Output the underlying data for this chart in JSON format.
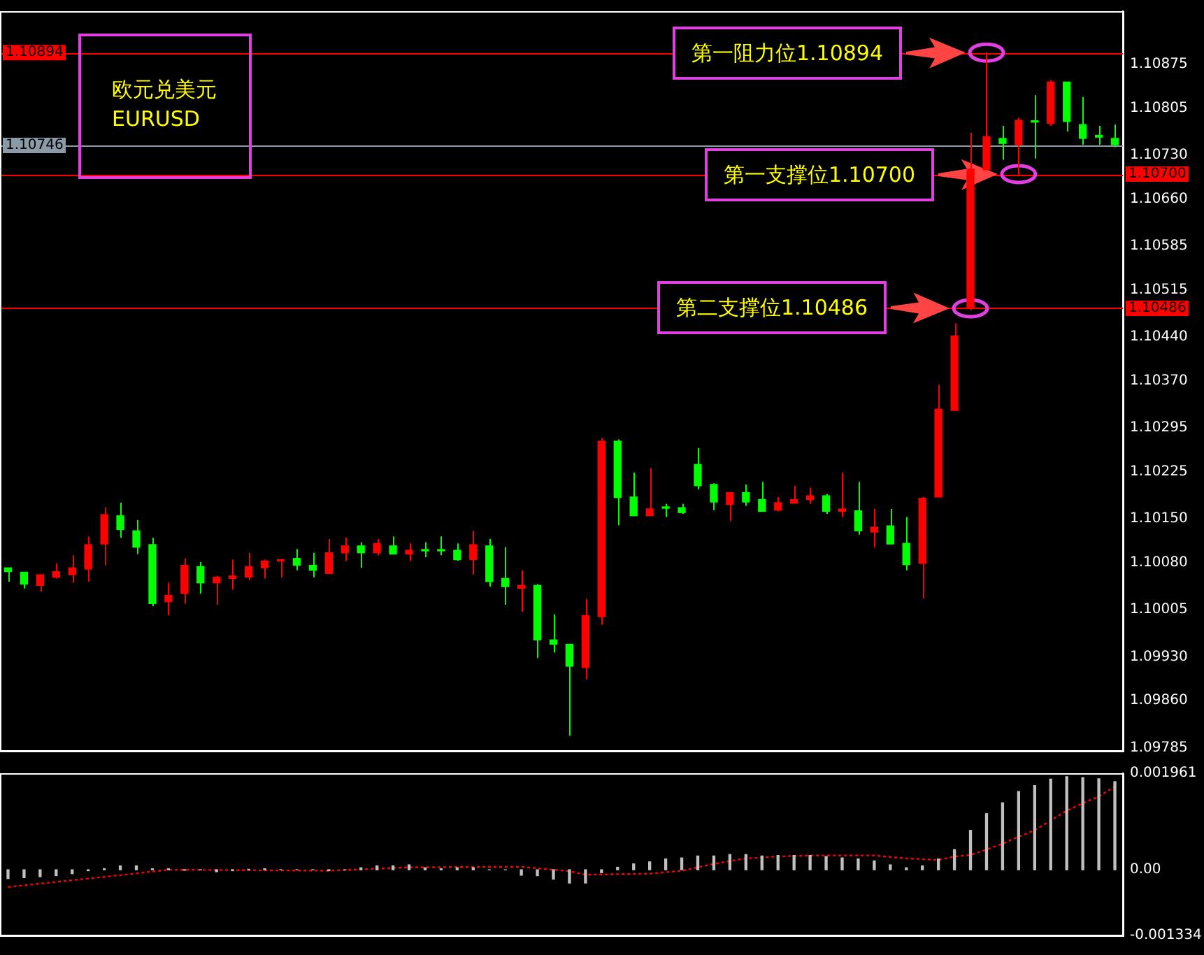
{
  "chart_data": [
    {
      "type": "candlestick",
      "title": "欧元兑美元",
      "subtitle": "EURUSD",
      "categories": [
        null,
        null,
        null,
        null,
        null,
        null,
        null,
        null,
        null,
        null,
        null,
        null,
        null,
        null,
        null,
        null,
        null,
        null,
        null,
        null,
        null,
        null,
        null,
        null,
        null,
        null,
        null,
        null,
        null,
        null,
        null,
        null,
        null,
        null,
        null,
        null,
        null,
        null,
        null,
        null,
        null,
        null,
        null,
        null,
        null,
        null,
        null,
        null,
        null,
        null,
        null,
        null,
        null,
        null,
        null,
        null,
        null,
        null,
        null,
        null,
        null,
        null,
        null,
        null,
        null,
        null,
        null,
        null,
        null,
        null
      ],
      "ohlc": [
        [
          1.10072,
          1.10072,
          1.1005,
          1.10066
        ],
        [
          1.10065,
          1.10065,
          1.10039,
          1.10046
        ],
        [
          1.10044,
          1.10061,
          1.10034,
          1.10061
        ],
        [
          1.10057,
          1.10079,
          1.10055,
          1.10066
        ],
        [
          1.10061,
          1.10092,
          1.10048,
          1.10072
        ],
        [
          1.1007,
          1.10122,
          1.1005,
          1.10109
        ],
        [
          1.1011,
          1.10168,
          1.10076,
          1.10157
        ],
        [
          1.10155,
          1.10176,
          1.1012,
          1.10133
        ],
        [
          1.10131,
          1.10148,
          1.10094,
          1.10105
        ],
        [
          1.10109,
          1.1012,
          1.10011,
          1.10015
        ],
        [
          1.10018,
          1.10048,
          1.09996,
          1.10028
        ],
        [
          1.10031,
          1.10087,
          1.10015,
          1.10076
        ],
        [
          1.10074,
          1.10081,
          1.10031,
          1.10048
        ],
        [
          1.10048,
          1.10059,
          1.10013,
          1.10057
        ],
        [
          1.10055,
          1.10085,
          1.10037,
          1.10059
        ],
        [
          1.10057,
          1.10096,
          1.10052,
          1.10074
        ],
        [
          1.10072,
          1.10085,
          1.10055,
          1.10083
        ],
        [
          1.10083,
          1.10086,
          1.10057,
          1.10085
        ],
        [
          1.10087,
          1.10102,
          1.10068,
          1.10076
        ],
        [
          1.10076,
          1.10096,
          1.10057,
          1.10068
        ],
        [
          1.10063,
          1.10118,
          1.10063,
          1.10096
        ],
        [
          1.10096,
          1.1012,
          1.10083,
          1.10107
        ],
        [
          1.10107,
          1.10113,
          1.10072,
          1.10096
        ],
        [
          1.10096,
          1.10118,
          1.10092,
          1.10111
        ],
        [
          1.10107,
          1.10122,
          1.10094,
          1.10094
        ],
        [
          1.10094,
          1.10111,
          1.10083,
          1.101
        ],
        [
          1.101,
          1.10113,
          1.10089,
          1.10099
        ],
        [
          1.101,
          1.10122,
          1.10092,
          1.10099
        ],
        [
          1.101,
          1.10111,
          1.10083,
          1.10085
        ],
        [
          1.10085,
          1.10131,
          1.10061,
          1.10109
        ],
        [
          1.10107,
          1.10118,
          1.10042,
          1.1005
        ],
        [
          1.10055,
          1.10105,
          1.10013,
          1.10042
        ],
        [
          1.10039,
          1.10068,
          1.10002,
          1.10044
        ],
        [
          1.10044,
          1.10046,
          1.09928,
          1.09957
        ],
        [
          1.09957,
          1.09998,
          1.09937,
          1.0995
        ],
        [
          1.0995,
          1.0995,
          1.09804,
          1.09915
        ],
        [
          1.09913,
          1.10022,
          1.09894,
          1.09996
        ],
        [
          1.09994,
          1.10279,
          1.09981,
          1.10274
        ],
        [
          1.10274,
          1.10277,
          1.1014,
          1.10184
        ],
        [
          1.10185,
          1.10224,
          1.10155,
          1.10155
        ],
        [
          1.10155,
          1.10231,
          1.10155,
          1.10166
        ],
        [
          1.10168,
          1.10174,
          1.10153,
          1.10167
        ],
        [
          1.10168,
          1.10174,
          1.10158,
          1.1016
        ],
        [
          1.10237,
          1.10263,
          1.10197,
          1.10203
        ],
        [
          1.10205,
          1.10207,
          1.10164,
          1.10177
        ],
        [
          1.10173,
          1.10192,
          1.10147,
          1.10192
        ],
        [
          1.10192,
          1.10205,
          1.10171,
          1.10177
        ],
        [
          1.10181,
          1.10209,
          1.10162,
          1.10162
        ],
        [
          1.10164,
          1.10185,
          1.10162,
          1.10176
        ],
        [
          1.10175,
          1.10203,
          1.10175,
          1.10181
        ],
        [
          1.10181,
          1.102,
          1.10174,
          1.10187
        ],
        [
          1.10187,
          1.1019,
          1.10158,
          1.10162
        ],
        [
          1.10162,
          1.10224,
          1.10153,
          1.10166
        ],
        [
          1.10163,
          1.10209,
          1.10125,
          1.10131
        ],
        [
          1.10129,
          1.10166,
          1.10105,
          1.10137
        ],
        [
          1.10139,
          1.10166,
          1.1011,
          1.1011
        ],
        [
          1.10111,
          1.10153,
          1.10068,
          1.10077
        ],
        [
          1.10079,
          1.10185,
          1.10023,
          1.10183
        ],
        [
          1.10185,
          1.10364,
          1.10185,
          1.10325
        ],
        [
          1.10323,
          1.10462,
          1.10323,
          1.10442
        ],
        [
          1.10487,
          1.10766,
          1.10483,
          1.10708
        ],
        [
          1.10707,
          1.10894,
          1.10707,
          1.1076
        ],
        [
          1.10757,
          1.10777,
          1.10723,
          1.10749
        ],
        [
          1.10747,
          1.1079,
          1.10699,
          1.10786
        ],
        [
          1.10784,
          1.10826,
          1.10725,
          1.10783
        ],
        [
          1.10781,
          1.1085,
          1.10777,
          1.10847
        ],
        [
          1.10847,
          1.10847,
          1.10768,
          1.10784
        ],
        [
          1.10779,
          1.10823,
          1.10747,
          1.10757
        ],
        [
          1.10762,
          1.10777,
          1.10747,
          1.10759
        ],
        [
          1.10757,
          1.10779,
          1.10743,
          1.10747
        ]
      ],
      "colors": [
        "#00ff00",
        "#00ff00",
        "#ff0000",
        "#ff0000",
        "#ff0000",
        "#ff0000",
        "#ff0000",
        "#00ff00",
        "#00ff00",
        "#00ff00",
        "#ff0000",
        "#ff0000",
        "#00ff00",
        "#ff0000",
        "#ff0000",
        "#ff0000",
        "#ff0000",
        "#ff0000",
        "#00ff00",
        "#00ff00",
        "#ff0000",
        "#ff0000",
        "#00ff00",
        "#ff0000",
        "#00ff00",
        "#ff0000",
        "#00ff00",
        "#00ff00",
        "#00ff00",
        "#ff0000",
        "#00ff00",
        "#00ff00",
        "#ff0000",
        "#00ff00",
        "#00ff00",
        "#00ff00",
        "#ff0000",
        "#ff0000",
        "#00ff00",
        "#00ff00",
        "#ff0000",
        "#00ff00",
        "#00ff00",
        "#00ff00",
        "#00ff00",
        "#ff0000",
        "#00ff00",
        "#00ff00",
        "#ff0000",
        "#ff0000",
        "#ff0000",
        "#00ff00",
        "#ff0000",
        "#00ff00",
        "#ff0000",
        "#00ff00",
        "#00ff00",
        "#ff0000",
        "#ff0000",
        "#ff0000",
        "#ff0000",
        "#ff0000",
        "#00ff00",
        "#ff0000",
        "#00ff00",
        "#ff0000",
        "#00ff00",
        "#00ff00",
        "#00ff00",
        "#00ff00"
      ],
      "ylim": [
        1.0978,
        1.1096
      ],
      "yticks": [
        1.10875,
        1.10805,
        {
          "value": 1.1073,
          "label": "1.10730"
        },
        {
          "value": 1.1066,
          "label": "1.10660"
        },
        1.10585,
        1.10515,
        {
          "value": 1.1044,
          "label": "1.10440"
        },
        {
          "value": 1.1037,
          "label": "1.10370"
        },
        1.10295,
        1.10225,
        {
          "value": 1.1015,
          "label": "1.10150"
        },
        {
          "value": 1.1008,
          "label": "1.10080"
        },
        1.10005,
        {
          "value": 1.0993,
          "label": "1.09930"
        },
        {
          "value": 1.0986,
          "label": "1.09860"
        },
        1.09785
      ],
      "ref_lines": [
        {
          "axis": "y",
          "value": 1.10894,
          "label": "1.10894",
          "color": "#ff0000"
        },
        {
          "axis": "y",
          "value": 1.10746,
          "label": "1.10746",
          "color": "#8c9aa8"
        },
        {
          "axis": "y",
          "value": 1.107,
          "label": "1.10700",
          "color": "#ff0000"
        },
        {
          "axis": "y",
          "value": 1.10486,
          "label": "1.10486",
          "color": "#ff0000"
        }
      ],
      "annotations": [
        {
          "text": "第一阻力位1.10894",
          "y": 1.10894
        },
        {
          "text": "第一支撑位1.10700",
          "y": 1.107
        },
        {
          "text": "第二支撑位1.10486",
          "y": 1.10486
        }
      ],
      "grid": false,
      "legend": false,
      "tick_labels": "y"
    },
    {
      "type": "bar",
      "categories": [
        null,
        null,
        null,
        null,
        null,
        null,
        null,
        null,
        null,
        null,
        null,
        null,
        null,
        null,
        null,
        null,
        null,
        null,
        null,
        null,
        null,
        null,
        null,
        null,
        null,
        null,
        null,
        null,
        null,
        null,
        null,
        null,
        null,
        null,
        null,
        null,
        null,
        null,
        null,
        null,
        null,
        null,
        null,
        null,
        null,
        null,
        null,
        null,
        null,
        null,
        null,
        null,
        null,
        null,
        null,
        null,
        null,
        null,
        null,
        null,
        null,
        null,
        null,
        null,
        null,
        null,
        null,
        null,
        null,
        null
      ],
      "series": [
        {
          "type": "bar",
          "color": "#c0c0c0",
          "values": [
            -0.00018,
            -0.00016,
            -0.00014,
            -0.00012,
            -8e-05,
            -2e-05,
            2e-05,
            8e-05,
            8e-05,
            2e-05,
            2e-05,
            -1e-05,
            0,
            -4e-05,
            -2e-05,
            1e-05,
            2e-05,
            0,
            0,
            0,
            -2e-05,
            0,
            4e-05,
            8e-05,
            8e-05,
            0.0001,
            4e-05,
            2e-05,
            4e-05,
            4e-05,
            0,
            0,
            -0.00011,
            -0.00012,
            -0.00019,
            -0.00027,
            -0.00027,
            -6e-05,
            5e-05,
            0.00012,
            0.00016,
            0.00022,
            0.00024,
            0.00028,
            0.00028,
            0.00031,
            0.00031,
            0.00028,
            0.00029,
            0.00029,
            0.00029,
            0.00027,
            0.00024,
            0.00022,
            0.00018,
            0.0001,
            4e-05,
            8e-05,
            0.00022,
            0.00041,
            0.0008,
            0.00114,
            0.00136,
            0.00159,
            0.00171,
            0.00184,
            0.00189,
            0.00187,
            0.00185,
            0.00179
          ]
        },
        {
          "type": "line",
          "color": "#ff0000",
          "line_style": "dotted",
          "marker": "none",
          "values": [
            -0.00035,
            null,
            null,
            null,
            null,
            null,
            null,
            -0.00011,
            null,
            null,
            0,
            null,
            null,
            null,
            null,
            null,
            null,
            null,
            null,
            null,
            -2e-05,
            null,
            null,
            null,
            null,
            5e-05,
            null,
            null,
            null,
            null,
            null,
            null,
            6e-05,
            null,
            null,
            -3e-05,
            -0.0001,
            null,
            null,
            null,
            -8e-05,
            null,
            -2e-05,
            null,
            0.00012,
            null,
            0.00023,
            null,
            0.00027,
            null,
            0.00029,
            null,
            null,
            null,
            0.00029,
            null,
            0.00023,
            null,
            0.0002,
            0.00027,
            0.0003,
            0.00041,
            0.00053,
            0.00067,
            0.0008,
            0.001,
            0.0012,
            0.00135,
            0.00149,
            0.00169
          ]
        }
      ],
      "ylim": [
        -0.001334,
        0.001961
      ],
      "yticks": [
        {
          "value": 0.001961,
          "label": "0.001961"
        },
        {
          "value": 0,
          "label": "0.00"
        },
        {
          "value": -0.001334,
          "label": "-0.001334"
        }
      ],
      "grid": false,
      "legend": false,
      "tick_labels": "y"
    }
  ]
}
